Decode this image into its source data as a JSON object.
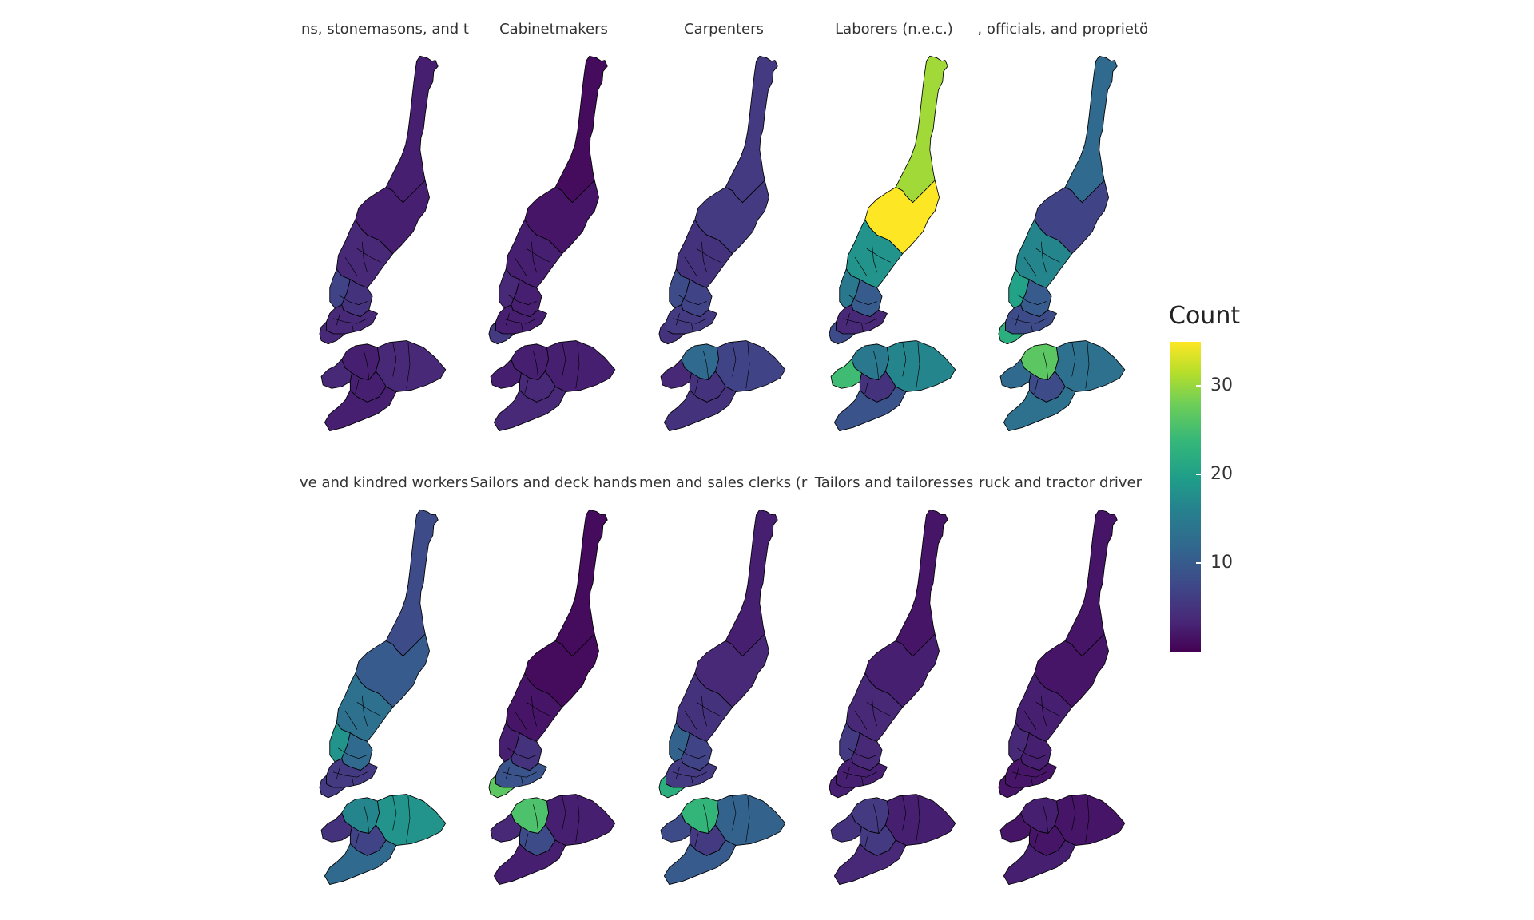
{
  "legend": {
    "title": "Count",
    "ticks": [
      {
        "value": 10,
        "label": "10"
      },
      {
        "value": 20,
        "label": "20"
      },
      {
        "value": 30,
        "label": "30"
      }
    ],
    "min": 0,
    "max": 35,
    "colors": [
      "#440154",
      "#482878",
      "#3e4a89",
      "#31688e",
      "#26828e",
      "#1f9e89",
      "#35b779",
      "#6ece58",
      "#b5de2b",
      "#fde725"
    ]
  },
  "panels": [
    {
      "title": "ons, stonemasons, and t",
      "values": {
        "upper": 3,
        "midUpper": 3,
        "mid": 4,
        "lowA": 7,
        "lowB": 5,
        "lowC": 4,
        "tip": 4,
        "bkNorth": 3,
        "bkEast": 4,
        "bkSouth": 3,
        "bkWest": 4,
        "bkCore": 3
      }
    },
    {
      "title": "Cabinetmakers",
      "values": {
        "upper": 1,
        "midUpper": 2,
        "mid": 3,
        "lowA": 4,
        "lowB": 3,
        "lowC": 3,
        "tip": 6,
        "bkNorth": 3,
        "bkEast": 3,
        "bkSouth": 4,
        "bkWest": 3,
        "bkCore": 4
      }
    },
    {
      "title": "Carpenters",
      "values": {
        "upper": 6,
        "midUpper": 6,
        "mid": 5,
        "lowA": 8,
        "lowB": 7,
        "lowC": 6,
        "tip": 5,
        "bkNorth": 12,
        "bkEast": 7,
        "bkSouth": 5,
        "bkWest": 4,
        "bkCore": 5
      }
    },
    {
      "title": "Laborers (n.e.c.)",
      "values": {
        "upper": 30,
        "midUpper": 35,
        "mid": 18,
        "lowA": 14,
        "lowB": 10,
        "lowC": 4,
        "tip": 8,
        "bkNorth": 14,
        "bkEast": 16,
        "bkSouth": 9,
        "bkWest": 24,
        "bkCore": 5
      }
    },
    {
      "title": "s, officials, and proprietö",
      "values": {
        "upper": 12,
        "midUpper": 7,
        "mid": 16,
        "lowA": 20,
        "lowB": 10,
        "lowC": 8,
        "tip": 22,
        "bkNorth": 26,
        "bkEast": 13,
        "bkSouth": 13,
        "bkWest": 12,
        "bkCore": 8
      }
    },
    {
      "title": "ve and kindred workers",
      "values": {
        "upper": 8,
        "midUpper": 10,
        "mid": 13,
        "lowA": 18,
        "lowB": 12,
        "lowC": 6,
        "tip": 6,
        "bkNorth": 16,
        "bkEast": 18,
        "bkSouth": 12,
        "bkWest": 5,
        "bkCore": 7
      }
    },
    {
      "title": "Sailors and deck hands",
      "values": {
        "upper": 1,
        "midUpper": 1,
        "mid": 2,
        "lowA": 3,
        "lowB": 5,
        "lowC": 9,
        "tip": 26,
        "bkNorth": 25,
        "bkEast": 3,
        "bkSouth": 3,
        "bkWest": 4,
        "bkCore": 8
      }
    },
    {
      "title": "men and sales clerks (r",
      "values": {
        "upper": 3,
        "midUpper": 4,
        "mid": 5,
        "lowA": 11,
        "lowB": 7,
        "lowC": 6,
        "tip": 22,
        "bkNorth": 23,
        "bkEast": 11,
        "bkSouth": 10,
        "bkWest": 8,
        "bkCore": 6
      }
    },
    {
      "title": "Tailors and tailoresses",
      "values": {
        "upper": 2,
        "midUpper": 3,
        "mid": 4,
        "lowA": 6,
        "lowB": 4,
        "lowC": 3,
        "tip": 3,
        "bkNorth": 6,
        "bkEast": 3,
        "bkSouth": 4,
        "bkWest": 5,
        "bkCore": 6
      }
    },
    {
      "title": "ruck and tractor driver",
      "values": {
        "upper": 2,
        "midUpper": 2,
        "mid": 3,
        "lowA": 4,
        "lowB": 3,
        "lowC": 2,
        "tip": 2,
        "bkNorth": 3,
        "bkEast": 2,
        "bkSouth": 3,
        "bkWest": 2,
        "bkCore": 2
      }
    }
  ]
}
